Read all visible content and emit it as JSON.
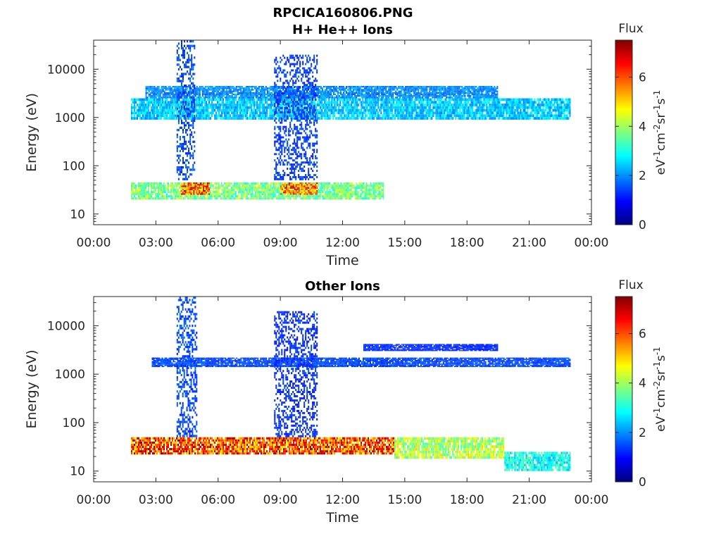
{
  "figure_title": "RPCICA160806.PNG",
  "colors": {
    "axis": "#262626",
    "background": "#ffffff",
    "colormap": [
      "#00007f",
      "#0000ff",
      "#007fff",
      "#00ffff",
      "#7fff7f",
      "#ffff00",
      "#ff7f00",
      "#ff0000",
      "#7f0000"
    ]
  },
  "chart_data": [
    {
      "type": "heatmap",
      "title": "H+ He++ Ions",
      "xlabel": "Time",
      "ylabel": "Energy (eV)",
      "x_ticks": [
        "00:00",
        "03:00",
        "06:00",
        "09:00",
        "12:00",
        "15:00",
        "18:00",
        "21:00",
        "00:00"
      ],
      "y_ticks": [
        10,
        100,
        1000,
        10000
      ],
      "y_tick_labels": [
        "10",
        "100",
        "1000",
        "10000"
      ],
      "y_scale": "log",
      "xlim_hours": [
        0,
        24
      ],
      "ylim": [
        6,
        40000
      ],
      "data_span_hours": [
        1.8,
        23.0
      ],
      "colorbar": {
        "title": "Flux",
        "label": "eV-1cm-2sr-1s-1",
        "label_base": "eV",
        "label_superscripts": [
          "-1",
          "-2",
          "-1",
          "-1"
        ],
        "label_segments": [
          "cm",
          "sr",
          "s"
        ],
        "range": [
          0,
          7.5
        ],
        "ticks": [
          0,
          2,
          4,
          6
        ],
        "tick_labels": [
          "0",
          "2",
          "4",
          "6"
        ]
      },
      "features": [
        {
          "name": "low-energy band",
          "t": [
            1.8,
            14.0
          ],
          "energy": [
            20,
            45
          ],
          "flux": 3.8
        },
        {
          "name": "low-energy peak",
          "t": [
            4.2,
            5.6
          ],
          "energy": [
            25,
            45
          ],
          "flux": 6.0
        },
        {
          "name": "low-energy peak",
          "t": [
            9.0,
            10.8
          ],
          "energy": [
            25,
            45
          ],
          "flux": 5.8
        },
        {
          "name": "mid band",
          "t": [
            1.8,
            23.0
          ],
          "energy": [
            900,
            2500
          ],
          "flux": 2.5
        },
        {
          "name": "upper band",
          "t": [
            2.5,
            19.5
          ],
          "energy": [
            2500,
            4500
          ],
          "flux": 2.0
        },
        {
          "name": "vertical streak",
          "t": [
            4.0,
            4.9
          ],
          "energy": [
            50,
            40000
          ],
          "flux": 1.5
        },
        {
          "name": "vertical streak",
          "t": [
            8.7,
            10.8
          ],
          "energy": [
            50,
            20000
          ],
          "flux": 1.4
        }
      ]
    },
    {
      "type": "heatmap",
      "title": "Other Ions",
      "xlabel": "Time",
      "ylabel": "Energy (eV)",
      "x_ticks": [
        "00:00",
        "03:00",
        "06:00",
        "09:00",
        "12:00",
        "15:00",
        "18:00",
        "21:00",
        "00:00"
      ],
      "y_ticks": [
        10,
        100,
        1000,
        10000
      ],
      "y_tick_labels": [
        "10",
        "100",
        "1000",
        "10000"
      ],
      "y_scale": "log",
      "xlim_hours": [
        0,
        24
      ],
      "ylim": [
        6,
        40000
      ],
      "data_span_hours": [
        1.8,
        23.0
      ],
      "colorbar": {
        "title": "Flux",
        "label": "eV-1cm-2sr-1s-1",
        "label_base": "eV",
        "label_superscripts": [
          "-1",
          "-2",
          "-1",
          "-1"
        ],
        "label_segments": [
          "cm",
          "sr",
          "s"
        ],
        "range": [
          0,
          7.5
        ],
        "ticks": [
          0,
          2,
          4,
          6
        ],
        "tick_labels": [
          "0",
          "2",
          "4",
          "6"
        ]
      },
      "features": [
        {
          "name": "low-energy band",
          "t": [
            1.8,
            14.5
          ],
          "energy": [
            22,
            50
          ],
          "flux": 6.2
        },
        {
          "name": "low-energy band",
          "t": [
            14.5,
            19.8
          ],
          "energy": [
            18,
            50
          ],
          "flux": 4.2
        },
        {
          "name": "low-energy tail",
          "t": [
            19.8,
            23.0
          ],
          "energy": [
            10,
            25
          ],
          "flux": 3.0
        },
        {
          "name": "mid band",
          "t": [
            2.8,
            23.0
          ],
          "energy": [
            1400,
            2200
          ],
          "flux": 1.5
        },
        {
          "name": "upper band",
          "t": [
            13.0,
            19.5
          ],
          "energy": [
            3000,
            4200
          ],
          "flux": 1.3
        },
        {
          "name": "vertical streak",
          "t": [
            4.0,
            5.0
          ],
          "energy": [
            50,
            40000
          ],
          "flux": 1.5
        },
        {
          "name": "vertical streak",
          "t": [
            8.7,
            10.8
          ],
          "energy": [
            50,
            20000
          ],
          "flux": 1.3
        }
      ]
    }
  ]
}
